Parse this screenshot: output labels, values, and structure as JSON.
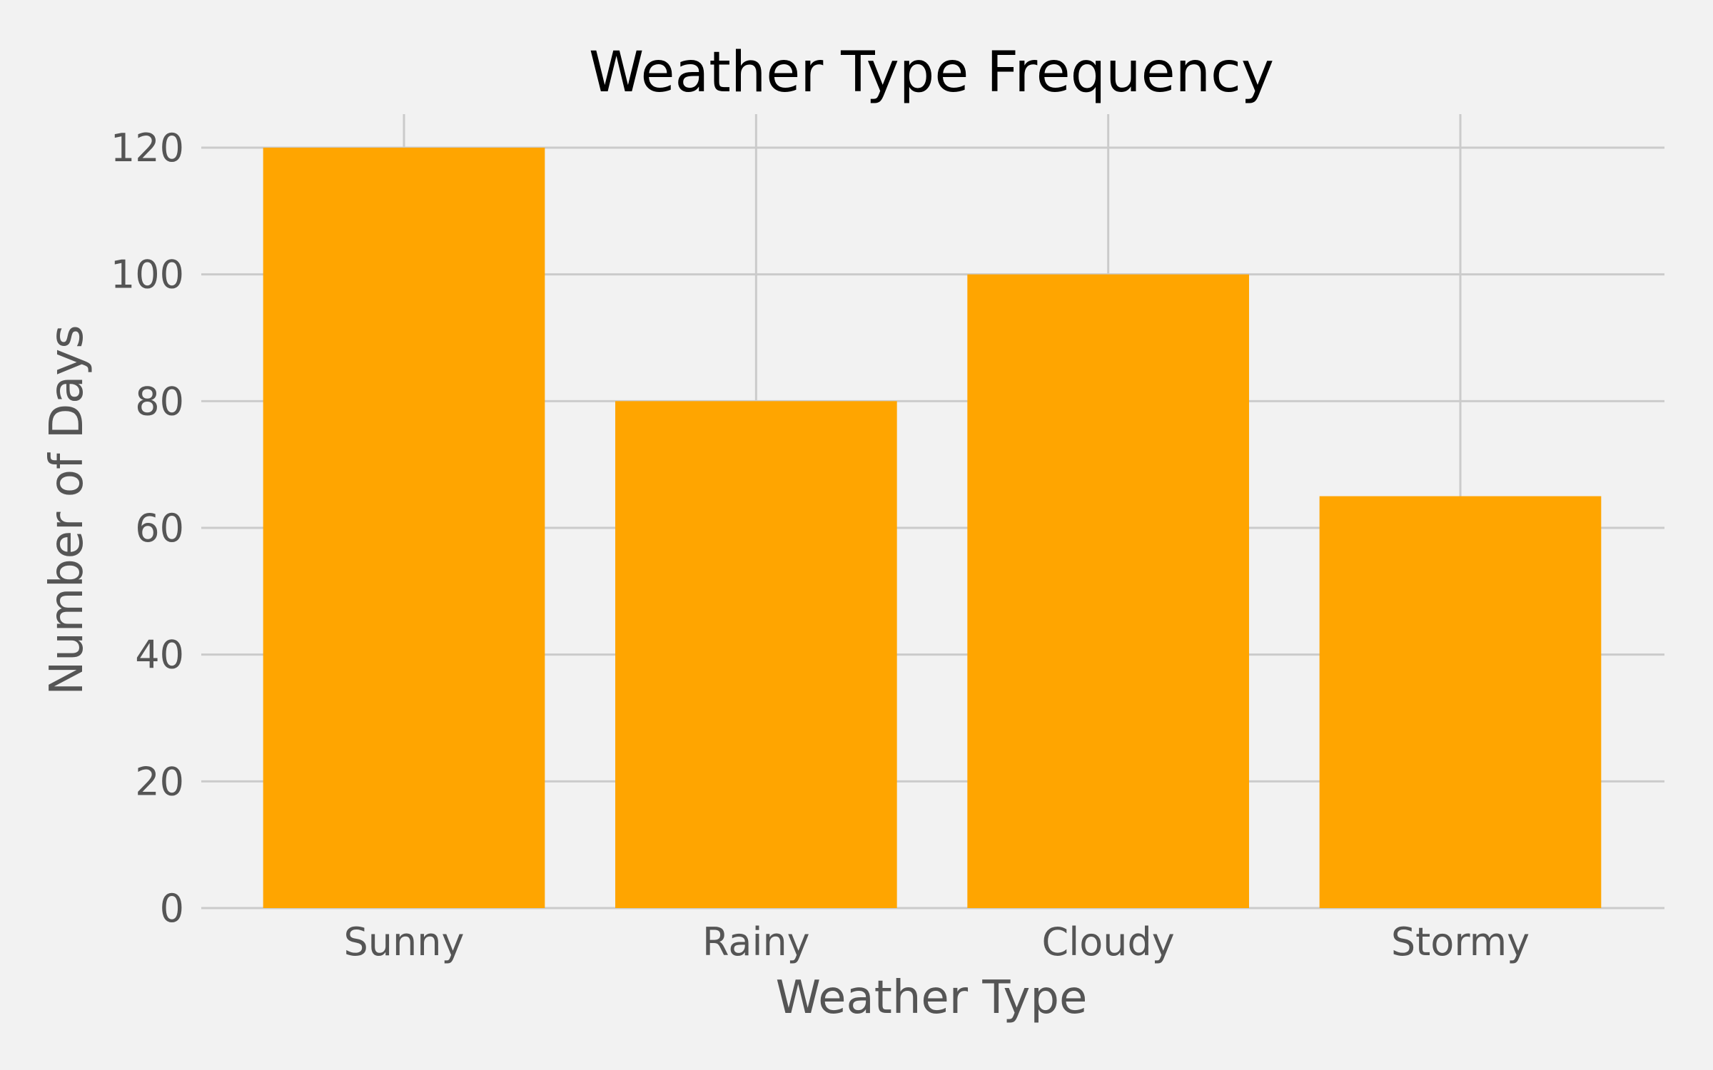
{
  "chart_data": {
    "type": "bar",
    "title": "Weather Type Frequency",
    "xlabel": "Weather Type",
    "ylabel": "Number of Days",
    "categories": [
      "Sunny",
      "Rainy",
      "Cloudy",
      "Stormy"
    ],
    "values": [
      120,
      80,
      100,
      65
    ],
    "ylim": [
      0,
      125
    ],
    "yticks": [
      0,
      20,
      40,
      60,
      80,
      100,
      120
    ],
    "grid": true,
    "colors": {
      "bar": "#ffa500",
      "background": "#f2f2f2",
      "grid": "#cbcbcb",
      "tick_text": "#555555",
      "title_text": "#000000"
    }
  }
}
